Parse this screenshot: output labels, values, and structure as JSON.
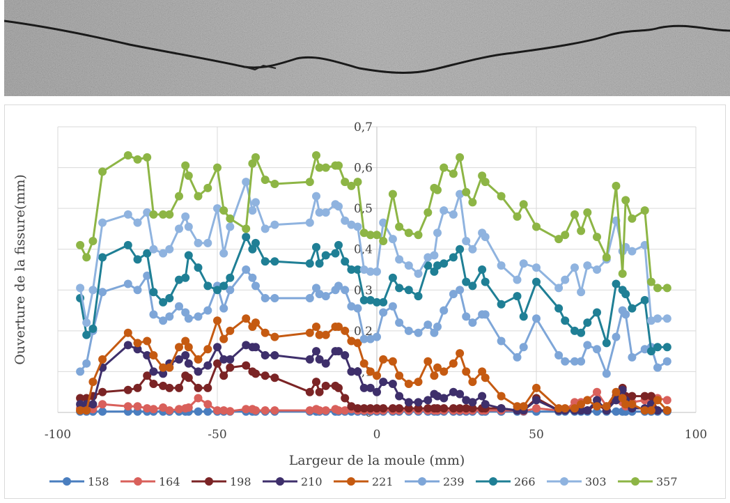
{
  "photo": {
    "description_icon": "concrete-crack-photo-icon",
    "background_color": "#9a9a9a",
    "crack_color": "#1a1a1a"
  },
  "chart_data": {
    "type": "line",
    "title": "",
    "xlabel": "Largeur de la moule (mm)",
    "ylabel": "Ouverture de la fissure(mm)",
    "xlim": [
      -100,
      100
    ],
    "ylim": [
      0,
      0.7
    ],
    "x_ticks": [
      "-100",
      "-50",
      "0",
      "50",
      "100"
    ],
    "y_ticks": [
      "0",
      "0,1",
      "0,2",
      "0,3",
      "0,4",
      "0,5",
      "0,6",
      "0,7"
    ],
    "grid": true,
    "legend_position": "bottom",
    "x": [
      -93,
      -91,
      -89,
      -86,
      -78,
      -75,
      -72,
      -70,
      -67,
      -65,
      -62,
      -60,
      -59,
      -56,
      -53,
      -50,
      -48,
      -46,
      -41,
      -39,
      -38,
      -35,
      -32,
      -21,
      -19,
      -18,
      -16,
      -13,
      -12,
      -10,
      -8,
      -6,
      -4,
      -2,
      0,
      2,
      5,
      7,
      10,
      13,
      16,
      18,
      19,
      21,
      24,
      26,
      28,
      30,
      33,
      34,
      39,
      44,
      46,
      50,
      57,
      59,
      62,
      64,
      66,
      69,
      72,
      75,
      77,
      78,
      80,
      84,
      86,
      88,
      91
    ],
    "series": [
      {
        "name": "158",
        "color": "#4a7ebf",
        "values": [
          0.002,
          0.002,
          0.002,
          0.002,
          0.002,
          0.002,
          0.002,
          0.002,
          0.002,
          0.002,
          0.002,
          0.002,
          0.002,
          0.002,
          0.002,
          0.002,
          0.002,
          0.002,
          0.002,
          0.002,
          0.002,
          0.002,
          0.002,
          0.002,
          0.002,
          0.002,
          0.002,
          0.002,
          0.002,
          0.002,
          0.002,
          0.002,
          0.002,
          0.002,
          0.002,
          0.002,
          0.002,
          0.002,
          0.002,
          0.002,
          0.002,
          0.002,
          0.002,
          0.002,
          0.002,
          0.002,
          0.002,
          0.002,
          0.002,
          0.002,
          0.002,
          0.002,
          0.002,
          0.002,
          0.002,
          0.002,
          0.002,
          0.002,
          0.002,
          0.002,
          0.002,
          0.002,
          0.002,
          0.002,
          0.002,
          0.002,
          0.002,
          0.002,
          0.002
        ]
      },
      {
        "name": "164",
        "color": "#d9605b",
        "values": [
          0.01,
          0.005,
          0.008,
          0.02,
          0.015,
          0.015,
          0.01,
          0.008,
          0.012,
          0.005,
          0.008,
          0.01,
          0.012,
          0.035,
          0.02,
          0.005,
          0.005,
          0.003,
          0.008,
          0.008,
          0.005,
          0.005,
          0.005,
          0.005,
          0.008,
          0.005,
          0.005,
          0.008,
          0.005,
          0.005,
          0.008,
          0.005,
          0.005,
          0.005,
          0.005,
          0.005,
          0.005,
          0.005,
          0.005,
          0.005,
          0.005,
          0.005,
          0.005,
          0.005,
          0.005,
          0.005,
          0.005,
          0.005,
          0.005,
          0.005,
          0.005,
          0.005,
          0.003,
          0.01,
          0.005,
          0.005,
          0.025,
          0.025,
          0.03,
          0.05,
          0.015,
          0.04,
          0.025,
          0.015,
          0.025,
          0.03,
          0.035,
          0.035,
          0.03
        ]
      },
      {
        "name": "198",
        "color": "#7b2425",
        "values": [
          0.035,
          0.035,
          0.04,
          0.05,
          0.055,
          0.06,
          0.09,
          0.07,
          0.065,
          0.06,
          0.06,
          0.09,
          0.085,
          0.06,
          0.06,
          0.12,
          0.09,
          0.11,
          0.115,
          0.1,
          0.095,
          0.09,
          0.085,
          0.05,
          0.075,
          0.05,
          0.065,
          0.065,
          0.06,
          0.035,
          0.015,
          0.01,
          0.01,
          0.01,
          0.01,
          0.01,
          0.01,
          0.01,
          0.01,
          0.01,
          0.01,
          0.01,
          0.01,
          0.01,
          0.01,
          0.01,
          0.01,
          0.01,
          0.01,
          0.01,
          0.01,
          0.005,
          0.005,
          0.035,
          0.005,
          0.005,
          0.005,
          0.005,
          0.005,
          0.02,
          0.005,
          0.04,
          0.06,
          0.04,
          0.04,
          0.04,
          0.04,
          0.005,
          0.005
        ]
      },
      {
        "name": "210",
        "color": "#3e2f6b",
        "values": [
          0.02,
          0.02,
          0.02,
          0.11,
          0.165,
          0.155,
          0.14,
          0.1,
          0.095,
          0.12,
          0.13,
          0.14,
          0.12,
          0.1,
          0.115,
          0.16,
          0.13,
          0.13,
          0.165,
          0.16,
          0.16,
          0.14,
          0.14,
          0.13,
          0.15,
          0.13,
          0.12,
          0.15,
          0.15,
          0.14,
          0.1,
          0.1,
          0.06,
          0.06,
          0.05,
          0.075,
          0.07,
          0.04,
          0.025,
          0.025,
          0.03,
          0.045,
          0.04,
          0.035,
          0.05,
          0.045,
          0.03,
          0.025,
          0.04,
          0.02,
          0.01,
          0.005,
          0.005,
          0.03,
          0.005,
          0.005,
          0.005,
          0.005,
          0.005,
          0.03,
          0.005,
          0.03,
          0.055,
          0.03,
          0.01,
          0.01,
          0.02,
          0.005,
          0.005
        ]
      },
      {
        "name": "221",
        "color": "#c55a11",
        "values": [
          0.005,
          0.005,
          0.075,
          0.13,
          0.195,
          0.17,
          0.175,
          0.14,
          0.11,
          0.11,
          0.16,
          0.175,
          0.16,
          0.13,
          0.155,
          0.225,
          0.18,
          0.2,
          0.23,
          0.21,
          0.22,
          0.195,
          0.185,
          0.195,
          0.21,
          0.19,
          0.19,
          0.21,
          0.21,
          0.2,
          0.175,
          0.17,
          0.12,
          0.1,
          0.09,
          0.13,
          0.125,
          0.09,
          0.07,
          0.075,
          0.125,
          0.09,
          0.11,
          0.1,
          0.12,
          0.145,
          0.1,
          0.075,
          0.1,
          0.085,
          0.04,
          0.015,
          0.015,
          0.06,
          0.01,
          0.01,
          0.01,
          0.02,
          0.03,
          0.015,
          0.015,
          0.05,
          0.035,
          0.02,
          0.02,
          0.005,
          0.005,
          0.03,
          0.005
        ]
      },
      {
        "name": "239",
        "color": "#7ea6d8",
        "values": [
          0.1,
          0.12,
          0.2,
          0.295,
          0.315,
          0.3,
          0.335,
          0.24,
          0.225,
          0.235,
          0.26,
          0.245,
          0.23,
          0.235,
          0.25,
          0.31,
          0.255,
          0.3,
          0.35,
          0.33,
          0.31,
          0.28,
          0.28,
          0.28,
          0.305,
          0.29,
          0.285,
          0.3,
          0.31,
          0.3,
          0.26,
          0.255,
          0.18,
          0.18,
          0.185,
          0.245,
          0.26,
          0.22,
          0.2,
          0.195,
          0.215,
          0.195,
          0.21,
          0.25,
          0.29,
          0.3,
          0.235,
          0.22,
          0.24,
          0.24,
          0.175,
          0.135,
          0.16,
          0.23,
          0.14,
          0.125,
          0.125,
          0.125,
          0.165,
          0.155,
          0.095,
          0.185,
          0.25,
          0.24,
          0.135,
          0.155,
          0.16,
          0.11,
          0.125
        ]
      },
      {
        "name": "266",
        "color": "#1f7f95",
        "values": [
          0.28,
          0.19,
          0.205,
          0.38,
          0.41,
          0.375,
          0.39,
          0.295,
          0.27,
          0.28,
          0.325,
          0.33,
          0.385,
          0.355,
          0.31,
          0.3,
          0.31,
          0.33,
          0.43,
          0.4,
          0.415,
          0.37,
          0.37,
          0.365,
          0.405,
          0.365,
          0.385,
          0.39,
          0.41,
          0.37,
          0.35,
          0.35,
          0.275,
          0.275,
          0.27,
          0.27,
          0.33,
          0.305,
          0.3,
          0.285,
          0.36,
          0.345,
          0.36,
          0.365,
          0.38,
          0.4,
          0.32,
          0.31,
          0.35,
          0.32,
          0.265,
          0.285,
          0.235,
          0.32,
          0.255,
          0.225,
          0.2,
          0.195,
          0.22,
          0.245,
          0.17,
          0.315,
          0.3,
          0.29,
          0.255,
          0.275,
          0.15,
          0.16,
          0.16
        ]
      },
      {
        "name": "303",
        "color": "#8fb3df",
        "values": [
          0.305,
          0.22,
          0.3,
          0.465,
          0.485,
          0.465,
          0.49,
          0.4,
          0.39,
          0.4,
          0.45,
          0.48,
          0.455,
          0.415,
          0.415,
          0.5,
          0.39,
          0.455,
          0.565,
          0.495,
          0.515,
          0.45,
          0.46,
          0.465,
          0.53,
          0.49,
          0.49,
          0.51,
          0.505,
          0.47,
          0.46,
          0.455,
          0.35,
          0.345,
          0.345,
          0.465,
          0.425,
          0.375,
          0.36,
          0.34,
          0.38,
          0.385,
          0.44,
          0.495,
          0.485,
          0.535,
          0.42,
          0.4,
          0.44,
          0.43,
          0.36,
          0.325,
          0.365,
          0.355,
          0.305,
          0.325,
          0.355,
          0.295,
          0.36,
          0.35,
          0.375,
          0.47,
          0.395,
          0.405,
          0.395,
          0.41,
          0.225,
          0.23,
          0.23
        ]
      },
      {
        "name": "357",
        "color": "#8db545",
        "values": [
          0.41,
          0.38,
          0.42,
          0.59,
          0.63,
          0.62,
          0.625,
          0.485,
          0.485,
          0.485,
          0.53,
          0.605,
          0.58,
          0.53,
          0.55,
          0.6,
          0.495,
          0.475,
          0.45,
          0.61,
          0.625,
          0.57,
          0.56,
          0.565,
          0.63,
          0.6,
          0.6,
          0.605,
          0.605,
          0.565,
          0.555,
          0.565,
          0.44,
          0.435,
          0.435,
          0.42,
          0.535,
          0.455,
          0.44,
          0.435,
          0.49,
          0.55,
          0.545,
          0.6,
          0.585,
          0.625,
          0.54,
          0.515,
          0.58,
          0.565,
          0.53,
          0.48,
          0.51,
          0.455,
          0.425,
          0.435,
          0.485,
          0.445,
          0.49,
          0.43,
          0.38,
          0.555,
          0.34,
          0.52,
          0.475,
          0.495,
          0.32,
          0.305,
          0.305
        ]
      }
    ]
  }
}
